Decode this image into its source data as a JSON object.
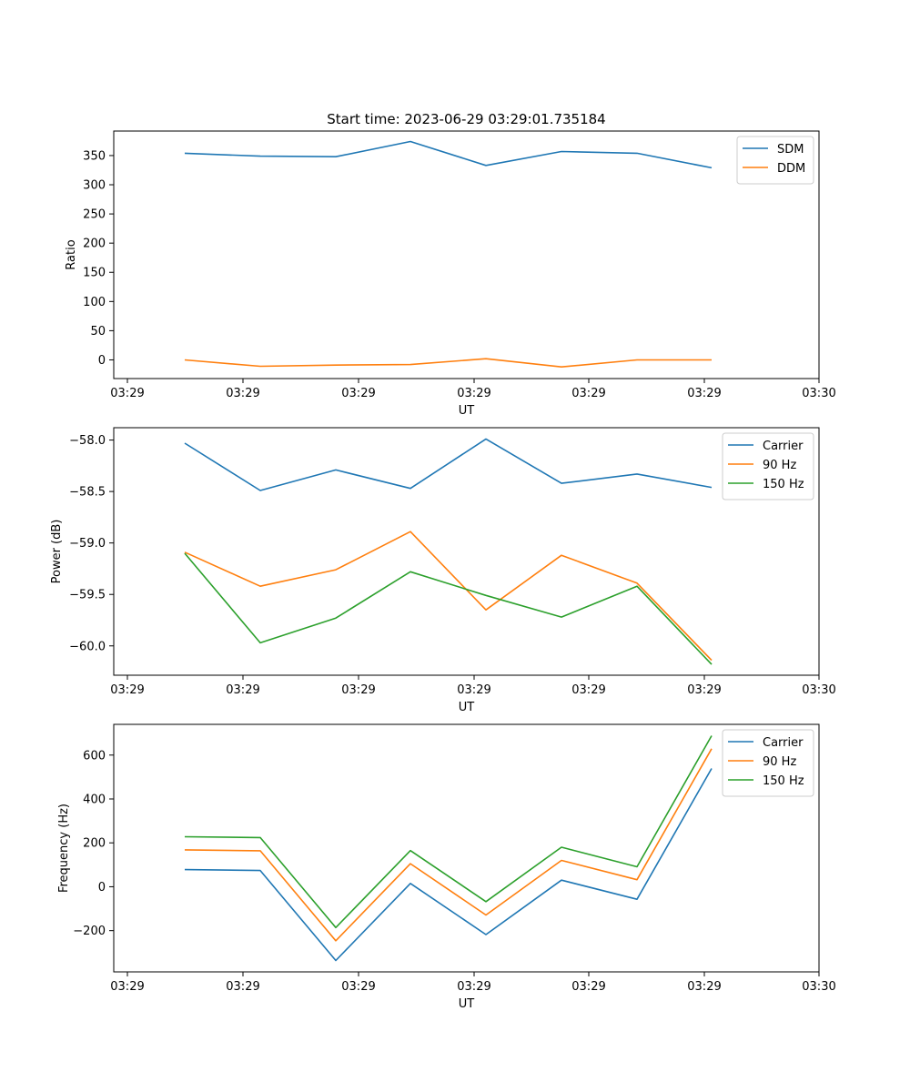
{
  "figure": {
    "title": "Start time: 2023-06-29 03:29:01.735184"
  },
  "chart_data": [
    {
      "type": "line",
      "title": "Start time: 2023-06-29 03:29:01.735184",
      "xlabel": "UT",
      "ylabel": "Ratio",
      "x_tick_labels": [
        "03:29",
        "03:29",
        "03:29",
        "03:29",
        "03:29",
        "03:29",
        "03:30"
      ],
      "y_ticks": [
        0,
        50,
        100,
        150,
        200,
        250,
        300,
        350
      ],
      "ylim": [
        -32,
        392
      ],
      "legend_position": "top-right",
      "grid": false,
      "series": [
        {
          "name": "SDM",
          "color": "#1f77b4",
          "values": [
            354,
            349,
            348,
            374,
            333,
            357,
            354,
            329
          ]
        },
        {
          "name": "DDM",
          "color": "#ff7f0e",
          "values": [
            0,
            -11,
            -9,
            -8,
            2,
            -12,
            0,
            0
          ]
        }
      ]
    },
    {
      "type": "line",
      "xlabel": "UT",
      "ylabel": "Power (dB)",
      "x_tick_labels": [
        "03:29",
        "03:29",
        "03:29",
        "03:29",
        "03:29",
        "03:29",
        "03:30"
      ],
      "y_ticks": [
        -60.0,
        -59.5,
        -59.0,
        -58.5,
        -58.0
      ],
      "y_tick_labels": [
        "−60.0",
        "−59.5",
        "−59.0",
        "−58.5",
        "−58.0"
      ],
      "ylim": [
        -60.285,
        -57.88
      ],
      "legend_position": "top-right",
      "grid": false,
      "series": [
        {
          "name": "Carrier",
          "color": "#1f77b4",
          "values": [
            -58.03,
            -58.49,
            -58.29,
            -58.47,
            -57.99,
            -58.42,
            -58.33,
            -58.46
          ]
        },
        {
          "name": "90 Hz",
          "color": "#ff7f0e",
          "values": [
            -59.09,
            -59.42,
            -59.26,
            -58.89,
            -59.65,
            -59.12,
            -59.39,
            -60.14
          ]
        },
        {
          "name": "150 Hz",
          "color": "#2ca02c",
          "values": [
            -59.1,
            -59.97,
            -59.73,
            -59.28,
            -59.51,
            -59.72,
            -59.42,
            -60.18
          ]
        }
      ]
    },
    {
      "type": "line",
      "xlabel": "UT",
      "ylabel": "Frequency (Hz)",
      "x_tick_labels": [
        "03:29",
        "03:29",
        "03:29",
        "03:29",
        "03:29",
        "03:29",
        "03:30"
      ],
      "y_ticks": [
        -200,
        0,
        200,
        400,
        600
      ],
      "y_tick_labels": [
        "−200",
        "0",
        "200",
        "400",
        "600"
      ],
      "ylim": [
        -388,
        740
      ],
      "legend_position": "top-right",
      "grid": false,
      "series": [
        {
          "name": "Carrier",
          "color": "#1f77b4",
          "values": [
            78,
            74,
            -336,
            15,
            -218,
            30,
            -57,
            539
          ]
        },
        {
          "name": "90 Hz",
          "color": "#ff7f0e",
          "values": [
            168,
            164,
            -246,
            105,
            -129,
            120,
            32,
            629
          ]
        },
        {
          "name": "150 Hz",
          "color": "#2ca02c",
          "values": [
            228,
            224,
            -186,
            165,
            -68,
            180,
            91,
            688
          ]
        }
      ]
    }
  ]
}
